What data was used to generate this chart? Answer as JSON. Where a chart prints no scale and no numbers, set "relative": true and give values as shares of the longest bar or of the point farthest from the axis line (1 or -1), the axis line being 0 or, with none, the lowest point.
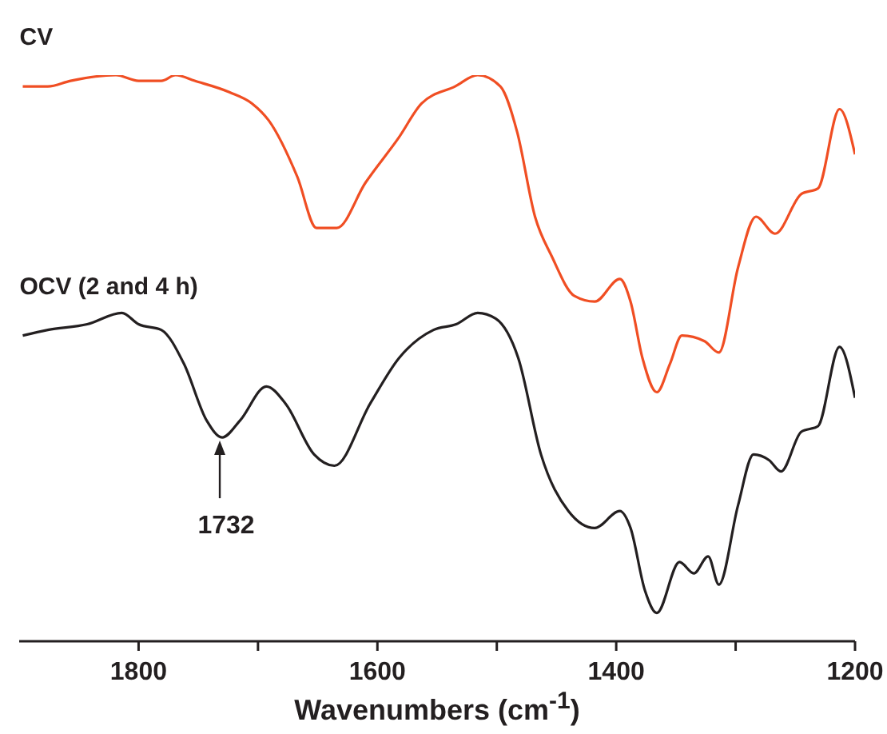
{
  "chart_data": {
    "type": "line",
    "relative": true,
    "xlabel": "Wavenumbers (cm$^{-1}$)",
    "xlim": [
      1900,
      1200
    ],
    "xticks": [
      1800,
      {
        "value": 1700,
        "label": null
      },
      1600,
      {
        "value": 1500,
        "label": null
      },
      1400,
      {
        "value": 1300,
        "label": null
      },
      1200
    ],
    "marker": "none",
    "line_style": "solid",
    "annotations": [
      {
        "text": "1732",
        "x": 1732,
        "y": 0.36
      }
    ],
    "series": [
      {
        "name": "CV",
        "color": "#f04e23",
        "x": [
          1897,
          1876,
          1857,
          1819,
          1800,
          1781,
          1769,
          1753,
          1724,
          1705,
          1691,
          1667,
          1651,
          1634,
          1610,
          1582,
          1563,
          1535,
          1516,
          1497,
          1483,
          1468,
          1454,
          1435,
          1418,
          1397,
          1388,
          1378,
          1366,
          1355,
          1345,
          1326,
          1314,
          1298,
          1283,
          1267,
          1245,
          1231,
          1213,
          1200
        ],
        "values": [
          0.98,
          0.98,
          0.99,
          1,
          0.99,
          0.99,
          1,
          0.99,
          0.97,
          0.95,
          0.92,
          0.82,
          0.73,
          0.73,
          0.81,
          0.89,
          0.95,
          0.98,
          1,
          0.98,
          0.9,
          0.75,
          0.68,
          0.61,
          0.6,
          0.64,
          0.6,
          0.5,
          0.44,
          0.49,
          0.54,
          0.53,
          0.51,
          0.66,
          0.75,
          0.72,
          0.79,
          0.8,
          0.94,
          0.86
        ]
      },
      {
        "name": "OCV (2 and 4 h)",
        "color": "#231f20",
        "x": [
          1897,
          1876,
          1843,
          1814,
          1800,
          1781,
          1762,
          1743,
          1730,
          1715,
          1693,
          1677,
          1653,
          1636,
          1606,
          1582,
          1553,
          1534,
          1516,
          1501,
          1482,
          1463,
          1440,
          1418,
          1397,
          1388,
          1376,
          1366,
          1347,
          1335,
          1323,
          1314,
          1298,
          1285,
          1272,
          1262,
          1245,
          1231,
          1213,
          1200
        ],
        "values": [
          0.54,
          0.55,
          0.56,
          0.58,
          0.56,
          0.55,
          0.49,
          0.39,
          0.36,
          0.39,
          0.45,
          0.42,
          0.33,
          0.31,
          0.42,
          0.5,
          0.55,
          0.56,
          0.58,
          0.57,
          0.5,
          0.33,
          0.23,
          0.2,
          0.23,
          0.2,
          0.09,
          0.05,
          0.14,
          0.12,
          0.15,
          0.1,
          0.24,
          0.33,
          0.32,
          0.3,
          0.37,
          0.38,
          0.52,
          0.43
        ]
      }
    ]
  }
}
